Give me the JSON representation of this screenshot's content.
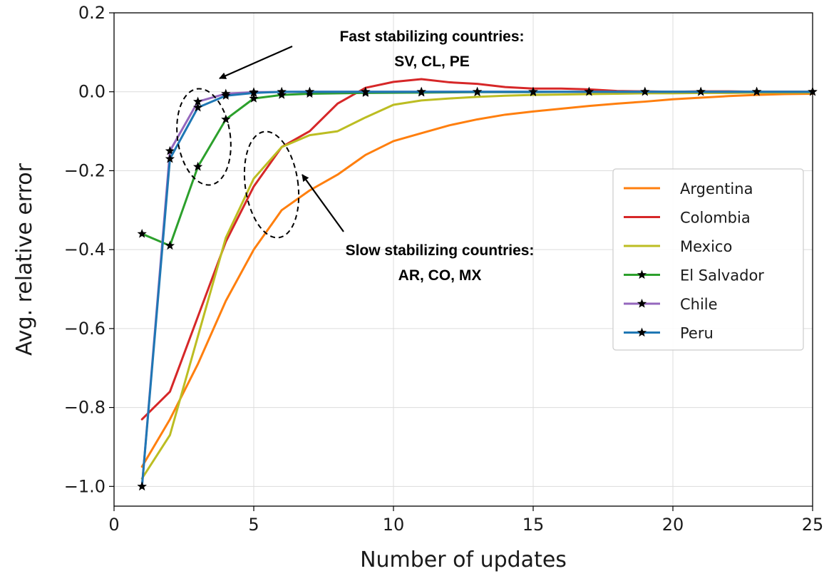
{
  "chart_data": {
    "type": "line",
    "xlabel": "Number of updates",
    "ylabel": "Avg. relative error",
    "xlim": [
      0,
      25
    ],
    "ylim": [
      -1.05,
      0.2
    ],
    "xticks": [
      0,
      5,
      10,
      15,
      20,
      25
    ],
    "xtick_labels": [
      "0",
      "5",
      "10",
      "15",
      "20",
      "25"
    ],
    "yticks": [
      0.2,
      0.0,
      -0.2,
      -0.4,
      -0.6,
      -0.8,
      -1.0
    ],
    "ytick_labels": [
      "0.2",
      "0.0",
      "−0.2",
      "−0.4",
      "−0.6",
      "−0.8",
      "−1.0"
    ],
    "grid": true,
    "legend_position": "center-right",
    "series": [
      {
        "name": "Argentina",
        "color": "#ff7f0e",
        "marker": "none",
        "x": [
          1,
          2,
          3,
          4,
          5,
          6,
          7,
          8,
          9,
          10,
          11,
          12,
          13,
          14,
          15,
          16,
          17,
          18,
          19,
          20,
          21,
          22,
          23,
          24,
          25
        ],
        "y": [
          -0.95,
          -0.83,
          -0.69,
          -0.53,
          -0.4,
          -0.3,
          -0.25,
          -0.21,
          -0.16,
          -0.125,
          -0.105,
          -0.085,
          -0.07,
          -0.058,
          -0.05,
          -0.043,
          -0.036,
          -0.03,
          -0.025,
          -0.019,
          -0.015,
          -0.011,
          -0.008,
          -0.006,
          -0.005
        ]
      },
      {
        "name": "Colombia",
        "color": "#d62728",
        "marker": "none",
        "x": [
          1,
          2,
          3,
          4,
          5,
          6,
          7,
          8,
          9,
          10,
          11,
          12,
          13,
          14,
          15,
          16,
          17,
          18,
          19,
          20,
          21,
          22,
          23,
          24,
          25
        ],
        "y": [
          -0.83,
          -0.76,
          -0.57,
          -0.38,
          -0.24,
          -0.14,
          -0.1,
          -0.03,
          0.01,
          0.025,
          0.032,
          0.024,
          0.02,
          0.012,
          0.008,
          0.008,
          0.006,
          0.002,
          0.001,
          0.0,
          0.001,
          0.001,
          0.0,
          0.0,
          0.0
        ]
      },
      {
        "name": "Mexico",
        "color": "#bcbd22",
        "marker": "none",
        "x": [
          1,
          2,
          3,
          4,
          5,
          6,
          7,
          8,
          9,
          10,
          11,
          12,
          13,
          14,
          15,
          16,
          17,
          18,
          19,
          20,
          21,
          22,
          23,
          24,
          25
        ],
        "y": [
          -0.98,
          -0.87,
          -0.62,
          -0.37,
          -0.22,
          -0.14,
          -0.11,
          -0.1,
          -0.065,
          -0.033,
          -0.022,
          -0.017,
          -0.013,
          -0.01,
          -0.008,
          -0.007,
          -0.006,
          -0.005,
          -0.004,
          -0.004,
          -0.003,
          -0.003,
          -0.002,
          -0.002,
          -0.002
        ]
      },
      {
        "name": "El Salvador",
        "color": "#2ca02c",
        "marker": "star",
        "x": [
          1,
          2,
          3,
          4,
          5,
          6,
          7,
          9,
          11,
          13,
          15,
          17,
          19,
          21,
          23,
          25
        ],
        "y": [
          -0.36,
          -0.39,
          -0.19,
          -0.07,
          -0.017,
          -0.008,
          -0.005,
          -0.003,
          -0.002,
          -0.001,
          -0.001,
          0.0,
          0.0,
          0.0,
          0.0,
          0.0
        ]
      },
      {
        "name": "Chile",
        "color": "#9467bd",
        "marker": "star",
        "x": [
          1,
          2,
          3,
          4,
          5,
          7,
          9,
          11,
          13,
          15,
          17,
          19,
          21,
          23,
          25
        ],
        "y": [
          -1.0,
          -0.15,
          -0.025,
          -0.005,
          -0.001,
          0.0,
          0.0,
          0.0,
          0.0,
          0.0,
          0.0,
          0.0,
          0.0,
          0.0,
          0.0
        ]
      },
      {
        "name": "Peru",
        "color": "#1f77b4",
        "marker": "star",
        "x": [
          1,
          2,
          3,
          4,
          5,
          6,
          7,
          9,
          11,
          13,
          15,
          17,
          19,
          21,
          23,
          25
        ],
        "y": [
          -1.0,
          -0.17,
          -0.04,
          -0.01,
          -0.003,
          0.0,
          0.0,
          0.0,
          0.0,
          0.0,
          0.0,
          0.0,
          0.0,
          0.0,
          0.0,
          0.0
        ]
      }
    ],
    "annotations": [
      {
        "lines": [
          "Fast stabilizing countries:",
          "SV, CL, PE"
        ]
      },
      {
        "lines": [
          "Slow stabilizing countries:",
          "AR, CO, MX"
        ]
      }
    ]
  }
}
